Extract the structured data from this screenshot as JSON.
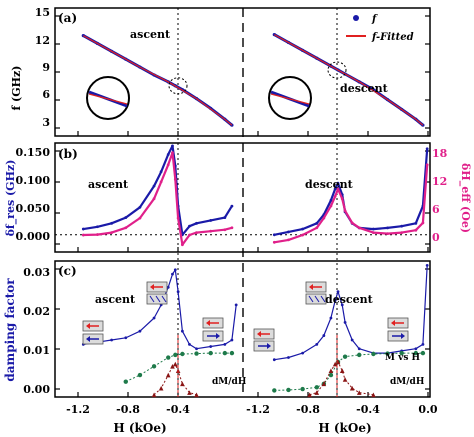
{
  "colors": {
    "blue": "#1a1aa8",
    "red": "#e02020",
    "pink": "#e0208a",
    "green": "#1e7a4a",
    "darkred": "#8a1414"
  },
  "chart_data": [
    {
      "type": "line",
      "panel_label": "(a)",
      "ylabel": "f (GHz)",
      "ylim": [
        2,
        15
      ],
      "yticks": [
        "15",
        "12",
        "9",
        "6",
        "3"
      ],
      "legend": {
        "position": "top-right",
        "entries": [
          "f",
          "f-Fitted"
        ]
      },
      "annotations": [
        "ascent",
        "descent"
      ],
      "series": [
        {
          "name": "f",
          "side": "ascent",
          "x": [
            -1.1,
            -1.0,
            -0.9,
            -0.8,
            -0.7,
            -0.6,
            -0.5,
            -0.45,
            -0.4,
            -0.3,
            -0.2,
            -0.1,
            -0.05
          ],
          "values": [
            12.2,
            11.4,
            10.6,
            9.8,
            9.0,
            8.2,
            7.5,
            7.1,
            6.7,
            5.8,
            4.8,
            3.7,
            3.1
          ]
        },
        {
          "name": "f-Fitted",
          "side": "ascent",
          "x": [
            -1.1,
            -0.9,
            -0.7,
            -0.5,
            -0.3,
            -0.1,
            -0.05
          ],
          "values": [
            12.2,
            10.6,
            9.0,
            7.5,
            5.8,
            3.7,
            3.1
          ]
        },
        {
          "name": "f",
          "side": "descent",
          "x": [
            -1.1,
            -1.0,
            -0.9,
            -0.8,
            -0.7,
            -0.65,
            -0.6,
            -0.5,
            -0.4,
            -0.3,
            -0.2,
            -0.1,
            -0.05
          ],
          "values": [
            12.3,
            11.5,
            10.7,
            9.9,
            9.1,
            8.7,
            8.3,
            7.5,
            6.7,
            5.7,
            4.7,
            3.7,
            3.1
          ]
        },
        {
          "name": "f-Fitted",
          "side": "descent",
          "x": [
            -1.1,
            -0.9,
            -0.7,
            -0.5,
            -0.3,
            -0.1,
            -0.05
          ],
          "values": [
            12.3,
            10.7,
            9.1,
            7.5,
            5.7,
            3.7,
            3.1
          ]
        }
      ]
    },
    {
      "type": "line",
      "panel_label": "(b)",
      "ylabel_left": "δf_res (GHz)",
      "ylabel_right": "δH_eff (Oe)",
      "ylim_left": [
        -0.03,
        0.16
      ],
      "ylim_right": [
        -3,
        19.5
      ],
      "yticks_left": [
        "0.150",
        "0.100",
        "0.050",
        "0.000"
      ],
      "yticks_right": [
        "18",
        "12",
        "6",
        "0"
      ],
      "annotations": [
        "ascent",
        "descent"
      ],
      "series": [
        {
          "name": "δf_res",
          "side": "ascent",
          "x": [
            -1.1,
            -1.0,
            -0.9,
            -0.8,
            -0.7,
            -0.6,
            -0.55,
            -0.5,
            -0.47,
            -0.45,
            -0.43,
            -0.4,
            -0.35,
            -0.3,
            -0.2,
            -0.1,
            -0.05
          ],
          "values": [
            0.01,
            0.014,
            0.02,
            0.03,
            0.048,
            0.085,
            0.11,
            0.14,
            0.155,
            0.12,
            0.05,
            0.0,
            0.015,
            0.02,
            0.025,
            0.03,
            0.05
          ]
        },
        {
          "name": "δH_eff",
          "side": "ascent",
          "x": [
            -1.1,
            -1.0,
            -0.9,
            -0.8,
            -0.7,
            -0.6,
            -0.55,
            -0.5,
            -0.47,
            -0.45,
            -0.43,
            -0.4,
            -0.35,
            -0.3,
            -0.2,
            -0.1,
            -0.05
          ],
          "values": [
            0.5,
            0.6,
            1.0,
            2.0,
            4.0,
            8.0,
            11.5,
            15.0,
            17.5,
            12.0,
            4.0,
            -1.5,
            0.5,
            1.0,
            1.3,
            1.6,
            2.0
          ]
        },
        {
          "name": "δf_res",
          "side": "descent",
          "x": [
            -1.1,
            -1.0,
            -0.9,
            -0.8,
            -0.75,
            -0.7,
            -0.67,
            -0.65,
            -0.62,
            -0.6,
            -0.55,
            -0.5,
            -0.4,
            -0.3,
            -0.2,
            -0.1,
            -0.05,
            -0.02
          ],
          "values": [
            0.0,
            0.005,
            0.01,
            0.02,
            0.035,
            0.06,
            0.08,
            0.09,
            0.07,
            0.04,
            0.02,
            0.012,
            0.01,
            0.012,
            0.015,
            0.02,
            0.05,
            0.15
          ]
        },
        {
          "name": "δH_eff",
          "side": "descent",
          "x": [
            -1.1,
            -1.0,
            -0.9,
            -0.8,
            -0.75,
            -0.7,
            -0.67,
            -0.65,
            -0.62,
            -0.6,
            -0.55,
            -0.5,
            -0.4,
            -0.3,
            -0.2,
            -0.1,
            -0.05,
            -0.02
          ],
          "values": [
            -1.0,
            -0.5,
            0.5,
            2.0,
            4.0,
            6.5,
            8.5,
            10.0,
            8.0,
            5.5,
            3.0,
            2.0,
            1.0,
            0.8,
            1.0,
            1.5,
            3.0,
            15.0
          ]
        }
      ]
    },
    {
      "type": "line",
      "panel_label": "(c)",
      "ylabel": "damping factor",
      "ylim": [
        0.0,
        0.031
      ],
      "yticks": [
        "0.03",
        "0.02",
        "0.01",
        "0.00"
      ],
      "xlabel": "H (kOe)",
      "xlim": [
        -1.3,
        0.0
      ],
      "xticks": [
        "-1.2",
        "-0.8",
        "-0.4",
        "0.0"
      ],
      "annotations": [
        "ascent",
        "descent",
        "M vs H",
        "dM/dH"
      ],
      "series": [
        {
          "name": "damping factor",
          "side": "ascent",
          "x": [
            -1.1,
            -1.0,
            -0.9,
            -0.8,
            -0.7,
            -0.6,
            -0.55,
            -0.5,
            -0.47,
            -0.45,
            -0.43,
            -0.4,
            -0.35,
            -0.3,
            -0.2,
            -0.1,
            -0.05,
            -0.02
          ],
          "values": [
            0.012,
            0.0125,
            0.013,
            0.0135,
            0.015,
            0.018,
            0.021,
            0.025,
            0.028,
            0.029,
            0.024,
            0.015,
            0.012,
            0.011,
            0.0115,
            0.012,
            0.013,
            0.021
          ]
        },
        {
          "name": "M vs H",
          "side": "ascent",
          "x": [
            -0.8,
            -0.7,
            -0.6,
            -0.5,
            -0.45,
            -0.4,
            -0.3,
            -0.2,
            -0.1,
            -0.05
          ],
          "values": [
            0.0035,
            0.005,
            0.007,
            0.009,
            0.0096,
            0.0098,
            0.0099,
            0.01,
            0.01,
            0.01
          ]
        },
        {
          "name": "dM/dH",
          "side": "ascent",
          "x": [
            -0.6,
            -0.55,
            -0.5,
            -0.47,
            -0.45,
            -0.43,
            -0.4,
            -0.35,
            -0.3
          ],
          "values": [
            0.0005,
            0.002,
            0.005,
            0.007,
            0.0075,
            0.006,
            0.003,
            0.001,
            0.0005
          ]
        },
        {
          "name": "damping factor",
          "side": "descent",
          "x": [
            -1.1,
            -1.0,
            -0.9,
            -0.8,
            -0.75,
            -0.7,
            -0.67,
            -0.65,
            -0.62,
            -0.6,
            -0.55,
            -0.5,
            -0.4,
            -0.3,
            -0.2,
            -0.1,
            -0.05,
            -0.02
          ],
          "values": [
            0.0085,
            0.009,
            0.01,
            0.012,
            0.014,
            0.018,
            0.022,
            0.024,
            0.021,
            0.017,
            0.013,
            0.011,
            0.01,
            0.01,
            0.0105,
            0.011,
            0.012,
            0.03
          ]
        },
        {
          "name": "M vs H",
          "side": "descent",
          "x": [
            -1.1,
            -1.0,
            -0.9,
            -0.8,
            -0.75,
            -0.7,
            -0.65,
            -0.6,
            -0.5,
            -0.4,
            -0.3,
            -0.2,
            -0.1,
            -0.05
          ],
          "values": [
            0.0015,
            0.0016,
            0.0018,
            0.0022,
            0.003,
            0.005,
            0.008,
            0.0092,
            0.0096,
            0.0098,
            0.0099,
            0.01,
            0.01,
            0.01
          ]
        },
        {
          "name": "dM/dH",
          "side": "descent",
          "x": [
            -0.85,
            -0.8,
            -0.75,
            -0.7,
            -0.67,
            -0.65,
            -0.62,
            -0.6,
            -0.55,
            -0.5,
            -0.4
          ],
          "values": [
            0.0005,
            0.001,
            0.003,
            0.006,
            0.0075,
            0.008,
            0.006,
            0.004,
            0.002,
            0.001,
            0.0005
          ]
        }
      ]
    }
  ]
}
